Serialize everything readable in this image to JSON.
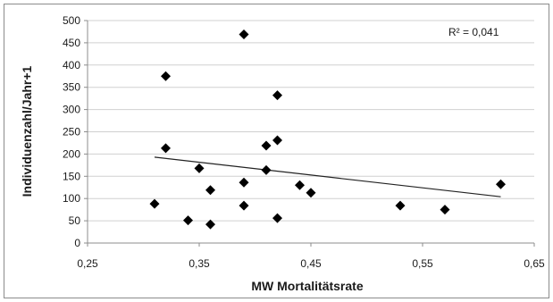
{
  "chart_data": {
    "type": "scatter",
    "xlabel": "MW Mortalitätsrate",
    "ylabel": "Individuenzahl/Jahr+1",
    "xlim": [
      0.25,
      0.65
    ],
    "ylim": [
      0,
      500
    ],
    "x_ticks": [
      "0,25",
      "0,35",
      "0,45",
      "0,55",
      "0,65"
    ],
    "x_tick_values": [
      0.25,
      0.35,
      0.45,
      0.55,
      0.65
    ],
    "y_ticks": [
      "0",
      "50",
      "100",
      "150",
      "200",
      "250",
      "300",
      "350",
      "400",
      "450",
      "500"
    ],
    "y_tick_values": [
      0,
      50,
      100,
      150,
      200,
      250,
      300,
      350,
      400,
      450,
      500
    ],
    "grid": "horizontal",
    "marker": "diamond",
    "marker_color": "#000000",
    "points": [
      {
        "x": 0.31,
        "y": 88
      },
      {
        "x": 0.32,
        "y": 375
      },
      {
        "x": 0.32,
        "y": 213
      },
      {
        "x": 0.34,
        "y": 51
      },
      {
        "x": 0.35,
        "y": 168
      },
      {
        "x": 0.36,
        "y": 119
      },
      {
        "x": 0.36,
        "y": 42
      },
      {
        "x": 0.39,
        "y": 469
      },
      {
        "x": 0.39,
        "y": 136
      },
      {
        "x": 0.39,
        "y": 84
      },
      {
        "x": 0.41,
        "y": 219
      },
      {
        "x": 0.41,
        "y": 164
      },
      {
        "x": 0.42,
        "y": 332
      },
      {
        "x": 0.42,
        "y": 231
      },
      {
        "x": 0.42,
        "y": 56
      },
      {
        "x": 0.44,
        "y": 130
      },
      {
        "x": 0.45,
        "y": 113
      },
      {
        "x": 0.53,
        "y": 84
      },
      {
        "x": 0.57,
        "y": 75
      },
      {
        "x": 0.62,
        "y": 132
      }
    ],
    "trendline": {
      "type": "linear",
      "from": [
        0.31,
        193
      ],
      "to": [
        0.62,
        104
      ]
    },
    "annotations": [
      "R² = 0,041"
    ]
  }
}
